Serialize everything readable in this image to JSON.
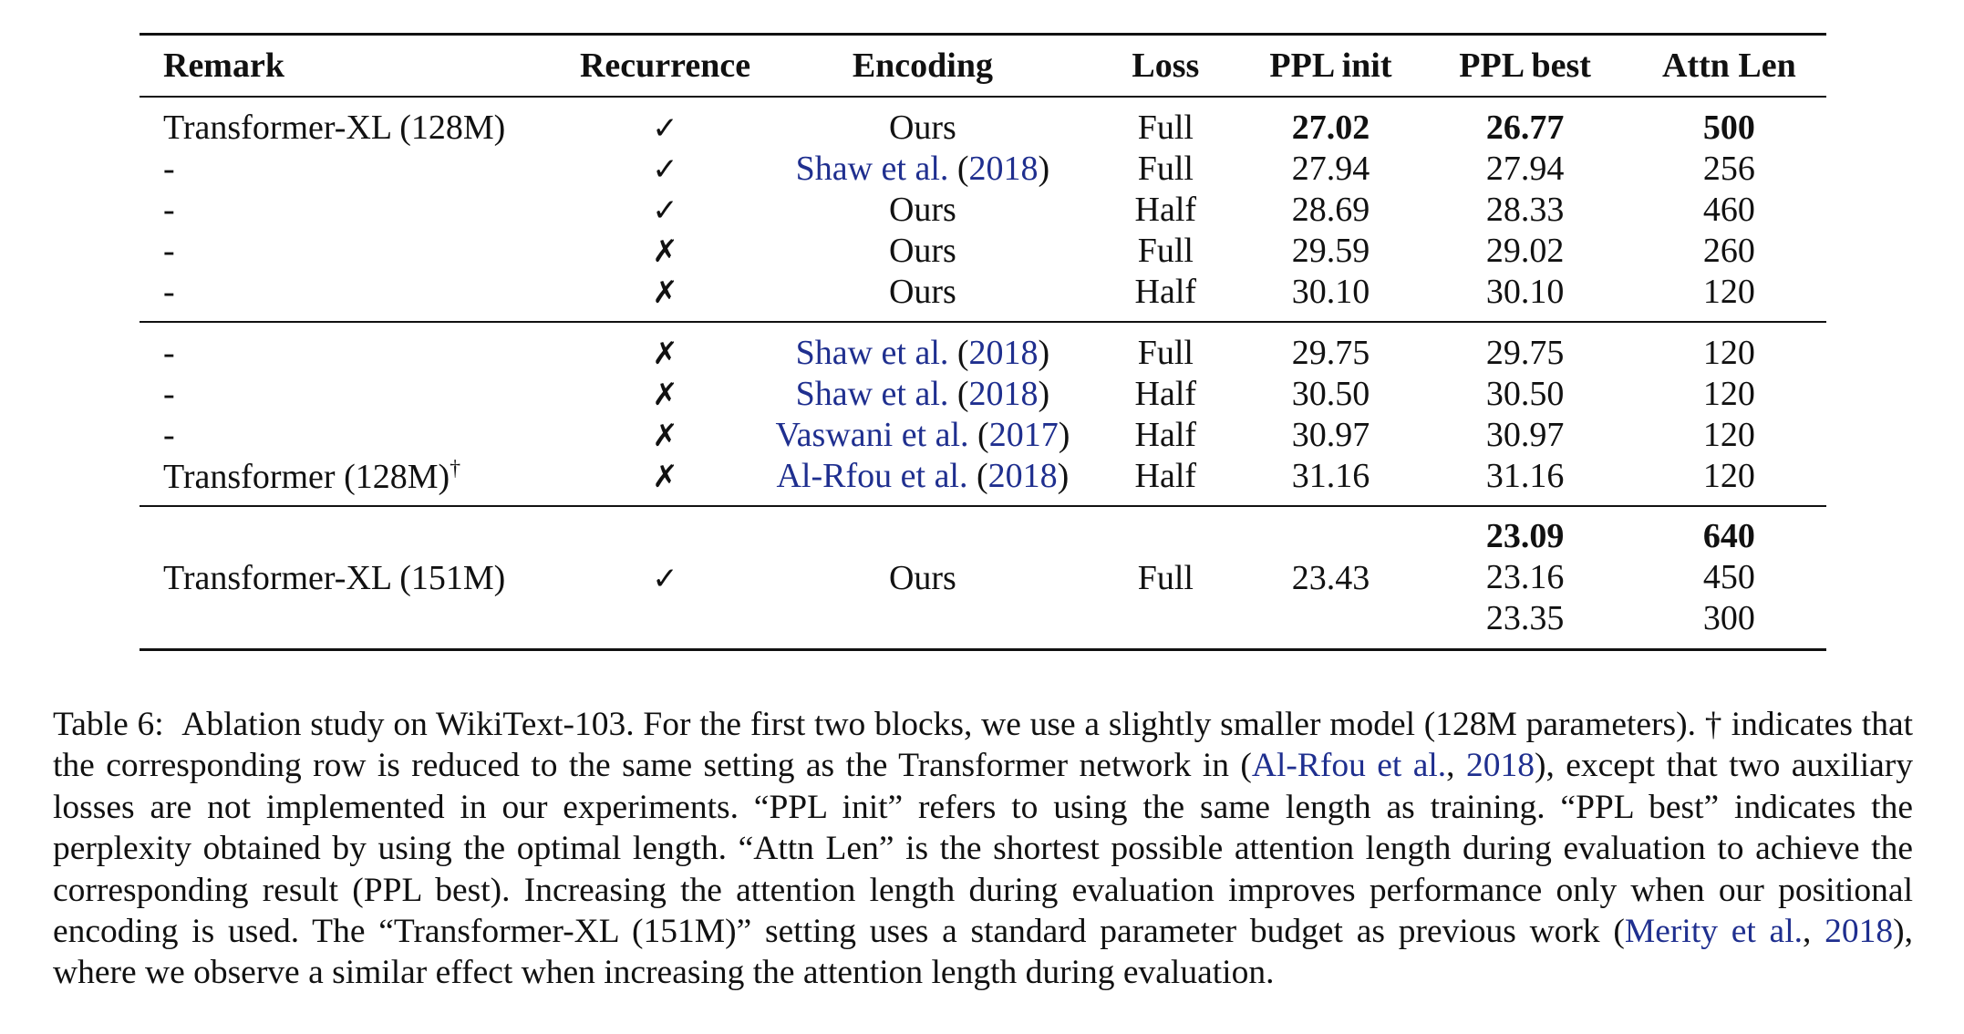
{
  "table": {
    "headers": {
      "remark": "Remark",
      "recurrence": "Recurrence",
      "encoding": "Encoding",
      "loss": "Loss",
      "ppl_init": "PPL init",
      "ppl_best": "PPL best",
      "attn_len": "Attn Len"
    },
    "block1": [
      {
        "remark": "Transformer-XL (128M)",
        "recurrence": "✓",
        "enc_text": "Ours",
        "enc_cite": "",
        "enc_year": "",
        "loss": "Full",
        "ppl_init": "27.02",
        "ppl_best": "26.77",
        "attn_len": "500"
      },
      {
        "remark": "-",
        "recurrence": "✓",
        "enc_text": "",
        "enc_cite": "Shaw et al.",
        "enc_year": "2018",
        "loss": "Full",
        "ppl_init": "27.94",
        "ppl_best": "27.94",
        "attn_len": "256"
      },
      {
        "remark": "-",
        "recurrence": "✓",
        "enc_text": "Ours",
        "enc_cite": "",
        "enc_year": "",
        "loss": "Half",
        "ppl_init": "28.69",
        "ppl_best": "28.33",
        "attn_len": "460"
      },
      {
        "remark": "-",
        "recurrence": "✗",
        "enc_text": "Ours",
        "enc_cite": "",
        "enc_year": "",
        "loss": "Full",
        "ppl_init": "29.59",
        "ppl_best": "29.02",
        "attn_len": "260"
      },
      {
        "remark": "-",
        "recurrence": "✗",
        "enc_text": "Ours",
        "enc_cite": "",
        "enc_year": "",
        "loss": "Half",
        "ppl_init": "30.10",
        "ppl_best": "30.10",
        "attn_len": "120"
      }
    ],
    "block2": [
      {
        "remark": "-",
        "recurrence": "✗",
        "enc_cite": "Shaw et al.",
        "enc_year": "2018",
        "loss": "Full",
        "ppl_init": "29.75",
        "ppl_best": "29.75",
        "attn_len": "120"
      },
      {
        "remark": "-",
        "recurrence": "✗",
        "enc_cite": "Shaw et al.",
        "enc_year": "2018",
        "loss": "Half",
        "ppl_init": "30.50",
        "ppl_best": "30.50",
        "attn_len": "120"
      },
      {
        "remark": "-",
        "recurrence": "✗",
        "enc_cite": "Vaswani et al.",
        "enc_year": "2017",
        "loss": "Half",
        "ppl_init": "30.97",
        "ppl_best": "30.97",
        "attn_len": "120"
      },
      {
        "remark": "Transformer (128M)",
        "remark_sup": "†",
        "recurrence": "✗",
        "enc_cite": "Al-Rfou et al.",
        "enc_year": "2018",
        "loss": "Half",
        "ppl_init": "31.16",
        "ppl_best": "31.16",
        "attn_len": "120"
      }
    ],
    "block3": {
      "remark": "Transformer-XL (151M)",
      "recurrence": "✓",
      "encoding": "Ours",
      "loss": "Full",
      "ppl_init": "23.43",
      "ppl_best": [
        "23.09",
        "23.16",
        "23.35"
      ],
      "attn_len": [
        "640",
        "450",
        "300"
      ]
    }
  },
  "caption": {
    "label": "Table 6:",
    "p1": "Ablation study on WikiText-103. For the first two blocks, we use a slightly smaller model (128M parameters). † indicates that the corresponding row is reduced to the same setting as the Transformer network in (",
    "cite1_name": "Al-Rfou et al.",
    "cite1_sep": ", ",
    "cite1_year": "2018",
    "p2": "), except that two auxiliary losses are not implemented in our experiments. “PPL init” refers to using the same length as training. “PPL best” indicates the perplexity obtained by using the optimal length. “Attn Len” is the shortest possible attention length during evaluation to achieve the corresponding result (PPL best). Increasing the attention length during evaluation improves performance only when our positional encoding is used. The “Transformer-XL (151M)” setting uses a standard parameter budget as previous work (",
    "cite2_name": "Merity et al.",
    "cite2_sep": ", ",
    "cite2_year": "2018",
    "p3": "), where we observe a similar effect when increasing the attention length during evaluation."
  }
}
